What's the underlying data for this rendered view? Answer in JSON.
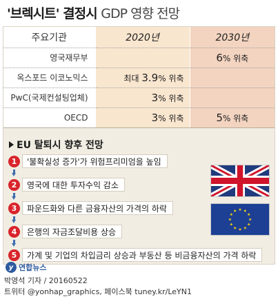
{
  "title": {
    "bold": "'브렉시트' 결정시",
    "light": "GDP 영향 전망"
  },
  "table": {
    "header": {
      "org": "주요기관",
      "y2020": "2020년",
      "y2030": "2030년"
    },
    "rows": [
      {
        "org": "영국재무부",
        "v2020_prefix": "",
        "v2020_num": "",
        "v2020_suffix": "",
        "v2030_num": "6",
        "v2030_suffix": "% 위축"
      },
      {
        "org": "옥스포드 이코노믹스",
        "v2020_prefix": "최대 ",
        "v2020_num": "3.9",
        "v2020_suffix": "% 위축",
        "v2030_num": "",
        "v2030_suffix": ""
      },
      {
        "org": "PwC(국제컨설팅업체)",
        "v2020_prefix": "",
        "v2020_num": "3",
        "v2020_suffix": "% 위축",
        "v2030_num": "",
        "v2030_suffix": ""
      },
      {
        "org": "OECD",
        "v2020_prefix": "",
        "v2020_num": "3",
        "v2020_suffix": "% 위축",
        "v2030_num": "5",
        "v2030_suffix": "% 위축"
      }
    ]
  },
  "section_title": "EU 탈퇴시 향후 전망",
  "steps": [
    {
      "num": "1",
      "text": "'불확실성 증가'가 위험프리미엄을 높임"
    },
    {
      "num": "2",
      "text": "영국에 대한 투자수익 감소"
    },
    {
      "num": "3",
      "text": "파운드화와 다른 금융자산의 가격의 하락"
    },
    {
      "num": "4",
      "text": "은행의 자금조달비용 상승"
    },
    {
      "num": "5",
      "text": "가계 및 기업의 차입금리 상승과 부동산 등 비금융자산의 가격 하락"
    }
  ],
  "flags": {
    "uk_icon": "uk-flag-icon",
    "eu_icon": "eu-flag-icon",
    "eu_blue": "#1d3f94",
    "eu_star": "#f6d10f",
    "uk_blue": "#1f3a7d",
    "uk_red": "#cf142b"
  },
  "logo": {
    "mark": "y",
    "text": "연합뉴스"
  },
  "credit": {
    "line1": "박영석 기자 / 20160522",
    "line2": "트위터 @yonhap_graphics, 페이스북 tuney.kr/LeYN1"
  },
  "colors": {
    "badge_red": "#d9242b",
    "arrow_blue": "#3f6fb0",
    "panel_bg": "#f1ede3",
    "col2020_bg": "#f9e6cf",
    "col2030_bg": "#f3d4c0"
  }
}
